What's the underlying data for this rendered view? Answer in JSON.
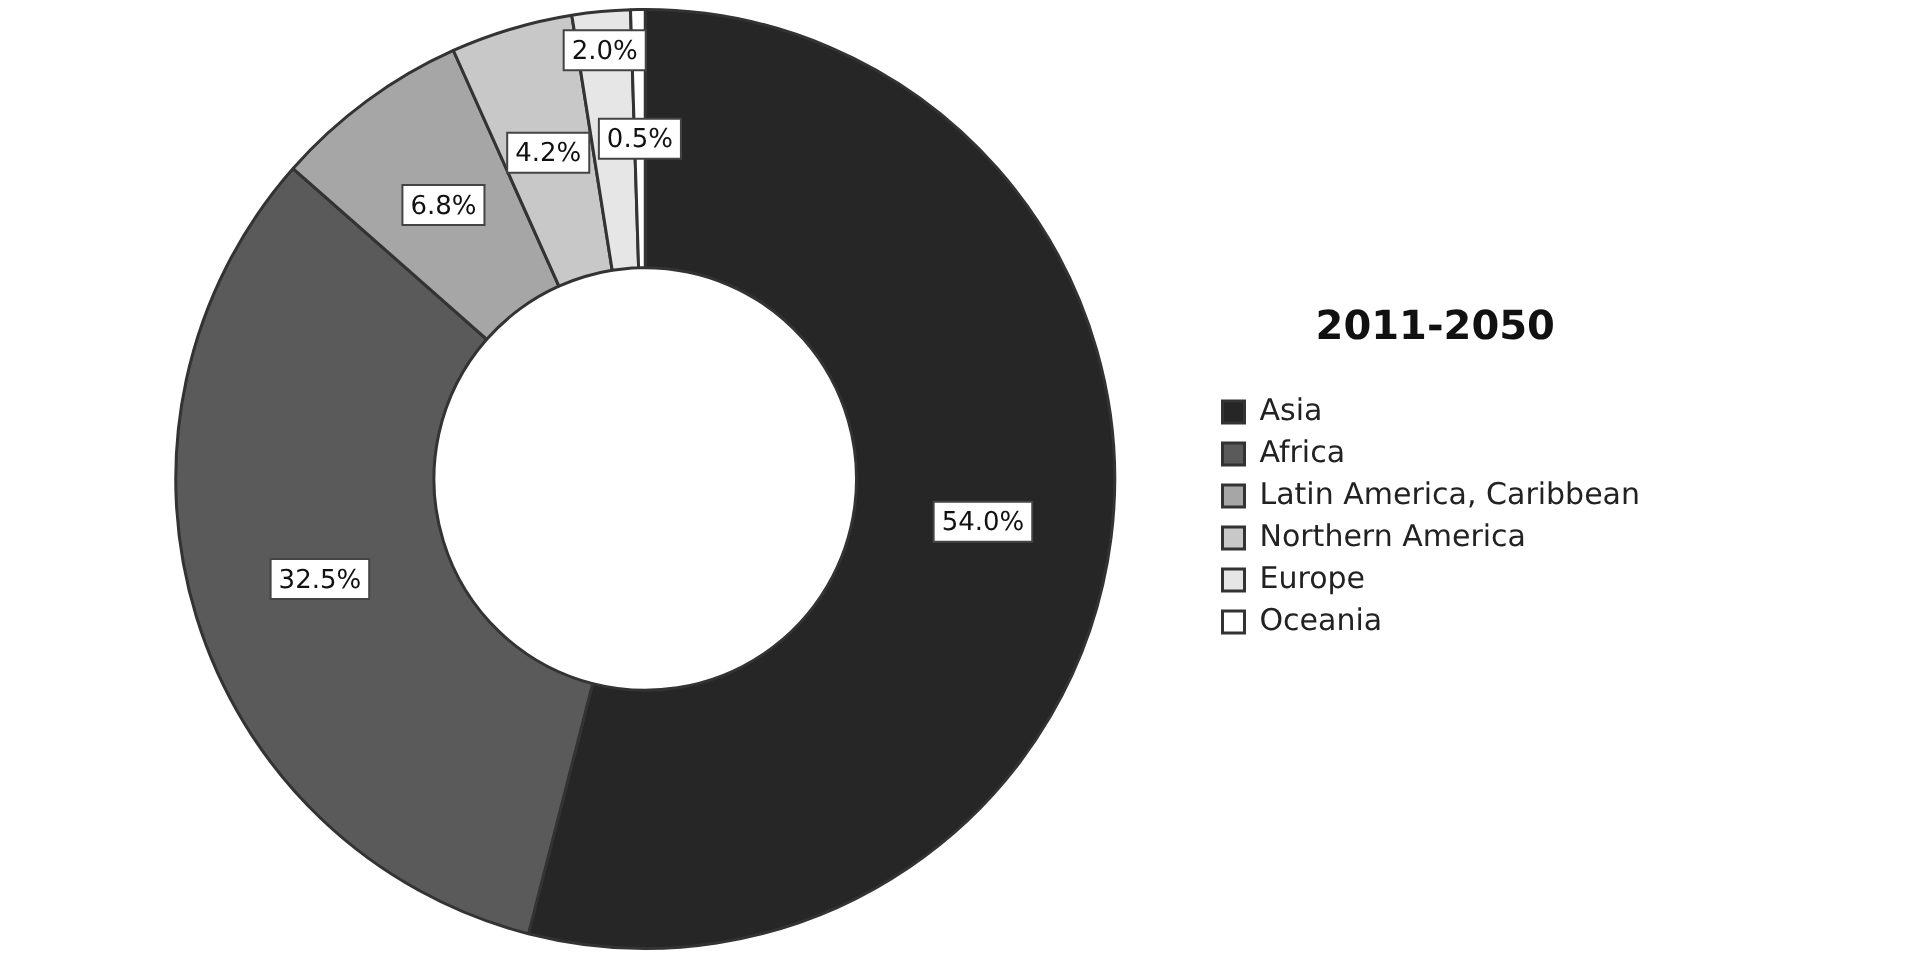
{
  "chart_data": {
    "type": "donut",
    "legend_title": "2011-2050",
    "categories": [
      "Asia",
      "Africa",
      "Latin America, Caribbean",
      "Northern America",
      "Europe",
      "Oceania"
    ],
    "values": [
      54.0,
      32.5,
      6.8,
      4.2,
      2.0,
      0.5
    ],
    "colors": [
      "#262626",
      "#5a5a5a",
      "#a6a6a6",
      "#c8c8c8",
      "#e6e6e6",
      "#ffffff"
    ],
    "value_labels": [
      "54.0%",
      "32.5%",
      "6.8%",
      "4.2%",
      "2.0%",
      "0.5%"
    ],
    "legend": "right"
  }
}
